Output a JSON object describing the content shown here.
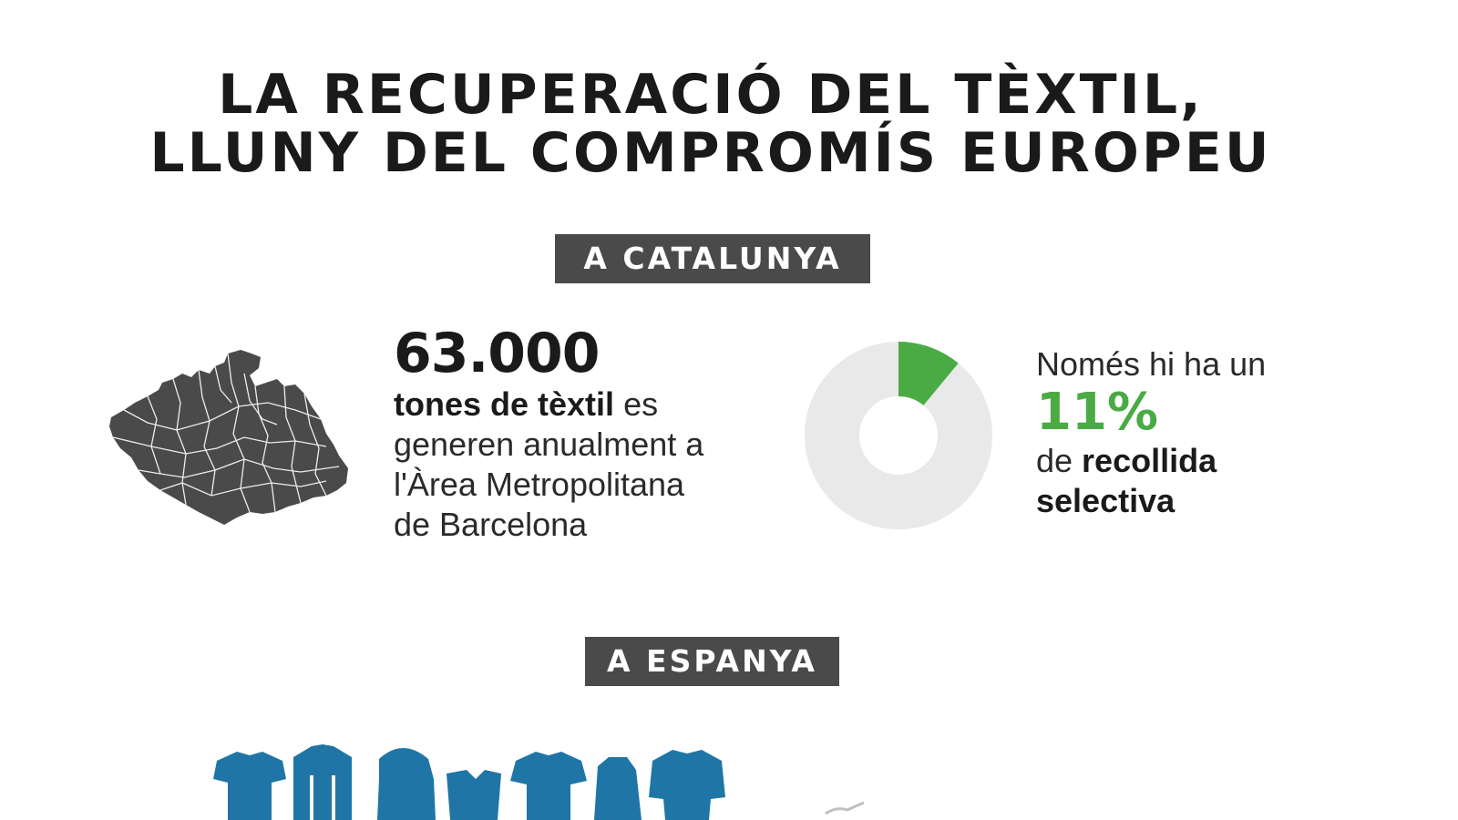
{
  "title": {
    "line1": "LA RECUPERACIÓ DEL TÈXTIL,",
    "line2": "LLUNY DEL COMPROMÍS EUROPEU"
  },
  "sections": {
    "catalunya_label": "A CATALUNYA",
    "espanya_label": "A ESPANYA"
  },
  "stat_tonnage": {
    "value": "63.000",
    "bold_text": "tones de tèxtil",
    "rest_line1": " es",
    "line2": "generen anualment a",
    "line3": "l'Àrea Metropolitana",
    "line4": "de Barcelona"
  },
  "stat_collection": {
    "intro": "Només hi ha un",
    "percent": "11%",
    "pre": "de ",
    "bold1": "recollida",
    "bold2": "selectiva",
    "fraction": 0.11
  },
  "colors": {
    "accent_green": "#4aab45",
    "donut_rest": "#e9e9e9",
    "label_bg": "#4a4a4a",
    "map_fill": "#4a4a4a",
    "shirt_blue": "#1f76a6"
  },
  "icons": {
    "map": "barcelona-metropolitan-map-icon",
    "shirts": "clothing-icons"
  }
}
